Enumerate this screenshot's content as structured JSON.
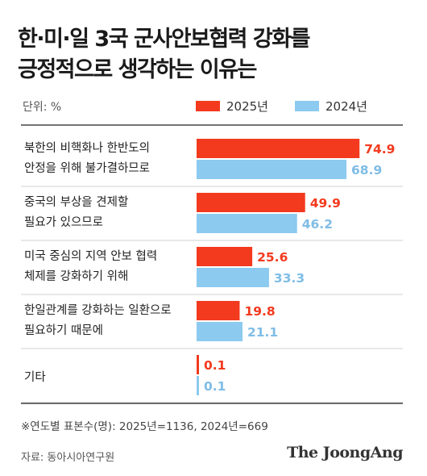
{
  "header": {
    "title_line1": "한·미·일 3국 군사안보협력 강화를",
    "title_line2": "긍정적으로 생각하는 이유는",
    "unit": "단위: %"
  },
  "colors": {
    "series_2025": "#f33a1e",
    "series_2024": "#8ccaef",
    "label_2025": "#f33a1e",
    "label_2024": "#7fbde6",
    "separator": "#222222"
  },
  "chart_data": {
    "type": "bar",
    "orientation": "horizontal",
    "categories": [
      [
        "북한의 비핵화나 한반도의",
        "안정을 위해 불가결하므로"
      ],
      [
        "중국의 부상을 견제할",
        "필요가 있으므로"
      ],
      [
        "미국 중심의 지역 안보 협력",
        "체제를 강화하기 위해"
      ],
      [
        "한일관계를 강화하는 일환으로",
        "필요하기 때문에"
      ],
      [
        "기타"
      ]
    ],
    "series": [
      {
        "name": "2025년",
        "values": [
          74.9,
          49.9,
          25.6,
          19.8,
          0.1
        ]
      },
      {
        "name": "2024년",
        "values": [
          68.9,
          46.2,
          33.3,
          21.1,
          0.1
        ]
      }
    ],
    "xlim": [
      0,
      100
    ],
    "legend_position": "top-right",
    "grid": false
  },
  "footer": {
    "footnote": "※연도별 표본수(명): 2025년=1136, 2024년=669",
    "source": "자료: 동아시아연구원",
    "logo": "The JoongAng"
  }
}
